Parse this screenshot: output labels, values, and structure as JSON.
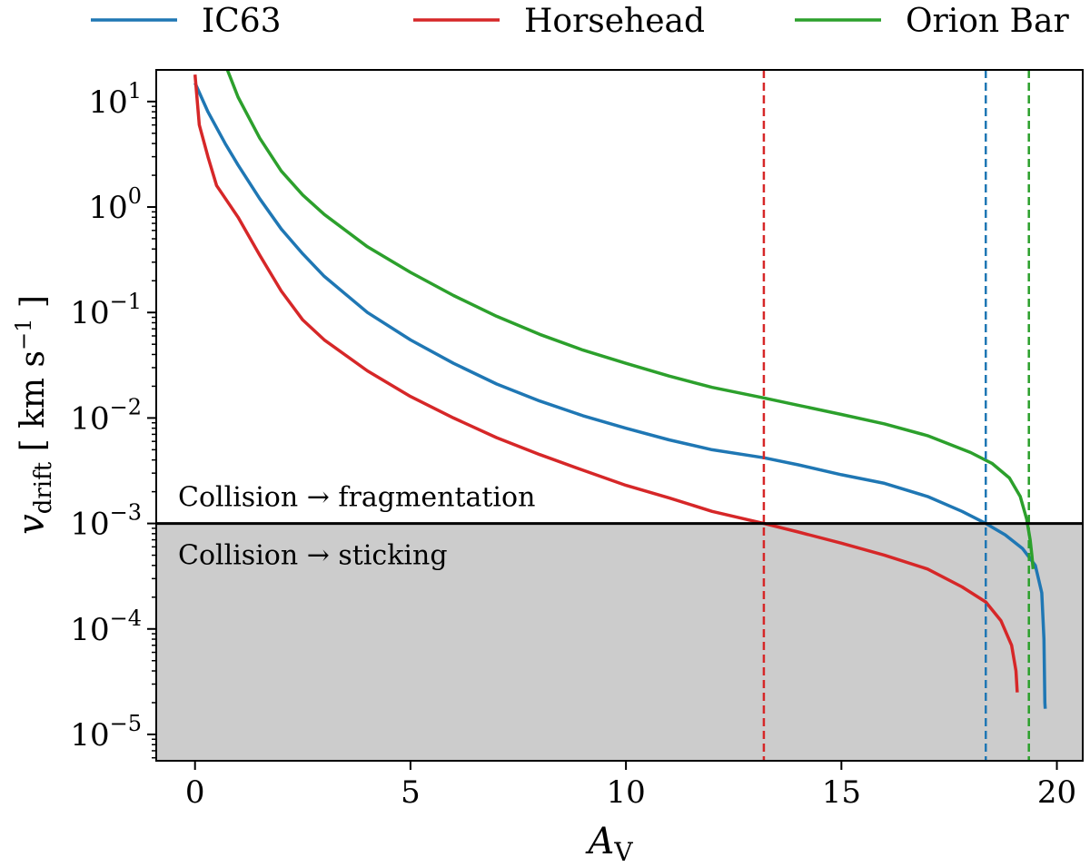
{
  "chart_data": {
    "type": "line",
    "title": "",
    "xlabel": "A",
    "xlabel_sub": "V",
    "ylabel": "v",
    "ylabel_sub": "drift",
    "ylabel_unit": "[ km s",
    "ylabel_unit_sup": "−1",
    "ylabel_unit_end": " ]",
    "yscale": "log",
    "xlim": [
      -0.9,
      20.6
    ],
    "ylim_log10": [
      -5.25,
      1.3
    ],
    "x_ticks": [
      0,
      5,
      10,
      15,
      20
    ],
    "x_tick_labels": [
      "0",
      "5",
      "10",
      "15",
      "20"
    ],
    "y_ticks_log10": [
      1,
      0,
      -1,
      -2,
      -3,
      -4,
      -5
    ],
    "y_tick_labels": [
      {
        "base": "10",
        "exp": "1"
      },
      {
        "base": "10",
        "exp": "0"
      },
      {
        "base": "10",
        "exp": "−1"
      },
      {
        "base": "10",
        "exp": "−2"
      },
      {
        "base": "10",
        "exp": "−3"
      },
      {
        "base": "10",
        "exp": "−4"
      },
      {
        "base": "10",
        "exp": "−5"
      }
    ],
    "threshold": {
      "value": 0.001,
      "label_above": "Collision → fragmentation",
      "label_below": "Collision → sticking",
      "shade_color": "#cccccc",
      "line_color": "#000000"
    },
    "legend_position": "top-outside",
    "series": [
      {
        "name": "IC63",
        "color": "#1f77b4",
        "vline_x": 18.35,
        "points": [
          [
            0.0,
            15
          ],
          [
            0.3,
            8
          ],
          [
            0.7,
            4
          ],
          [
            1.0,
            2.5
          ],
          [
            1.5,
            1.2
          ],
          [
            2.0,
            0.62
          ],
          [
            2.5,
            0.36
          ],
          [
            3.0,
            0.22
          ],
          [
            4.0,
            0.1
          ],
          [
            5.0,
            0.055
          ],
          [
            6.0,
            0.033
          ],
          [
            7.0,
            0.021
          ],
          [
            8.0,
            0.0145
          ],
          [
            9.0,
            0.0105
          ],
          [
            10.0,
            0.008
          ],
          [
            11.0,
            0.0062
          ],
          [
            12.0,
            0.005
          ],
          [
            13.2,
            0.0042
          ],
          [
            14.0,
            0.0036
          ],
          [
            15.0,
            0.0029
          ],
          [
            16.0,
            0.0024
          ],
          [
            17.0,
            0.0018
          ],
          [
            17.8,
            0.0013
          ],
          [
            18.35,
            0.001
          ],
          [
            18.8,
            0.00078
          ],
          [
            19.2,
            0.00058
          ],
          [
            19.5,
            0.0004
          ],
          [
            19.65,
            0.00022
          ],
          [
            19.7,
            8e-05
          ],
          [
            19.72,
            2e-05
          ],
          [
            19.73,
            1.75e-05
          ]
        ]
      },
      {
        "name": "Horsehead",
        "color": "#d62728",
        "vline_x": 13.2,
        "points": [
          [
            0.0,
            18
          ],
          [
            0.1,
            6
          ],
          [
            0.3,
            3
          ],
          [
            0.5,
            1.6
          ],
          [
            1.0,
            0.8
          ],
          [
            1.5,
            0.35
          ],
          [
            2.0,
            0.16
          ],
          [
            2.5,
            0.085
          ],
          [
            3.0,
            0.055
          ],
          [
            4.0,
            0.028
          ],
          [
            5.0,
            0.016
          ],
          [
            6.0,
            0.01
          ],
          [
            7.0,
            0.0065
          ],
          [
            8.0,
            0.0045
          ],
          [
            9.0,
            0.0032
          ],
          [
            10.0,
            0.0023
          ],
          [
            11.0,
            0.00175
          ],
          [
            12.0,
            0.0013
          ],
          [
            13.2,
            0.001
          ],
          [
            14.0,
            0.00083
          ],
          [
            15.0,
            0.00065
          ],
          [
            16.0,
            0.0005
          ],
          [
            17.0,
            0.00037
          ],
          [
            17.8,
            0.00025
          ],
          [
            18.35,
            0.00018
          ],
          [
            18.7,
            0.00012
          ],
          [
            18.95,
            7e-05
          ],
          [
            19.05,
            4e-05
          ],
          [
            19.08,
            2.5e-05
          ]
        ]
      },
      {
        "name": "Orion Bar",
        "color": "#2ca02c",
        "vline_x": 19.35,
        "points": [
          [
            0.75,
            20
          ],
          [
            1.0,
            11
          ],
          [
            1.5,
            4.5
          ],
          [
            2.0,
            2.2
          ],
          [
            2.5,
            1.3
          ],
          [
            3.0,
            0.85
          ],
          [
            4.0,
            0.42
          ],
          [
            5.0,
            0.24
          ],
          [
            6.0,
            0.145
          ],
          [
            7.0,
            0.092
          ],
          [
            8.0,
            0.062
          ],
          [
            9.0,
            0.044
          ],
          [
            10.0,
            0.033
          ],
          [
            11.0,
            0.025
          ],
          [
            12.0,
            0.0195
          ],
          [
            13.2,
            0.0155
          ],
          [
            14.0,
            0.0132
          ],
          [
            15.0,
            0.0108
          ],
          [
            16.0,
            0.0088
          ],
          [
            17.0,
            0.0068
          ],
          [
            18.0,
            0.0047
          ],
          [
            18.5,
            0.0037
          ],
          [
            18.9,
            0.0027
          ],
          [
            19.15,
            0.0018
          ],
          [
            19.3,
            0.0011
          ],
          [
            19.38,
            0.0007
          ],
          [
            19.42,
            0.0005
          ],
          [
            19.45,
            0.00037
          ]
        ]
      }
    ]
  }
}
